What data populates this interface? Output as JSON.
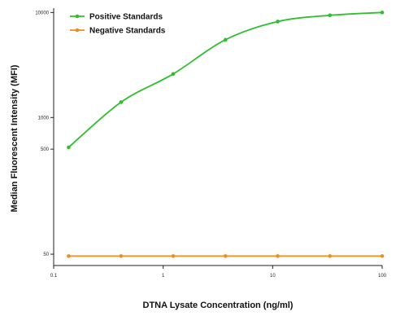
{
  "chart_data": {
    "type": "line",
    "title": "",
    "xlabel": "DTNA Lysate Concentration (ng/ml)",
    "ylabel": "Median  Fluorescent Intensity  (MFI)",
    "x_scale": "log",
    "y_scale": "log",
    "xlim": [
      0.1,
      100
    ],
    "ylim": [
      39,
      11000
    ],
    "x_ticks": [
      {
        "value": 0.1,
        "label": "0.1"
      },
      {
        "value": 1,
        "label": "1"
      },
      {
        "value": 10,
        "label": "10"
      },
      {
        "value": 100,
        "label": "100"
      }
    ],
    "y_ticks": [
      {
        "value": 50,
        "label": "50"
      },
      {
        "value": 500,
        "label": "500"
      },
      {
        "value": 1000,
        "label": "1000"
      },
      {
        "value": 10000,
        "label": "10000"
      }
    ],
    "grid": false,
    "legend_position": "top-left",
    "series": [
      {
        "name": "Positive Standards",
        "color": "#2fbf2f",
        "x": [
          0.137,
          0.412,
          1.235,
          3.704,
          11.11,
          33.33,
          100
        ],
        "y": [
          520,
          1400,
          2600,
          5500,
          8200,
          9400,
          10000
        ]
      },
      {
        "name": "Negative Standards",
        "color": "#f08c1e",
        "x": [
          0.137,
          0.412,
          1.235,
          3.704,
          11.11,
          33.33,
          100
        ],
        "y": [
          48,
          48,
          48,
          48,
          48,
          48,
          48
        ]
      }
    ]
  }
}
